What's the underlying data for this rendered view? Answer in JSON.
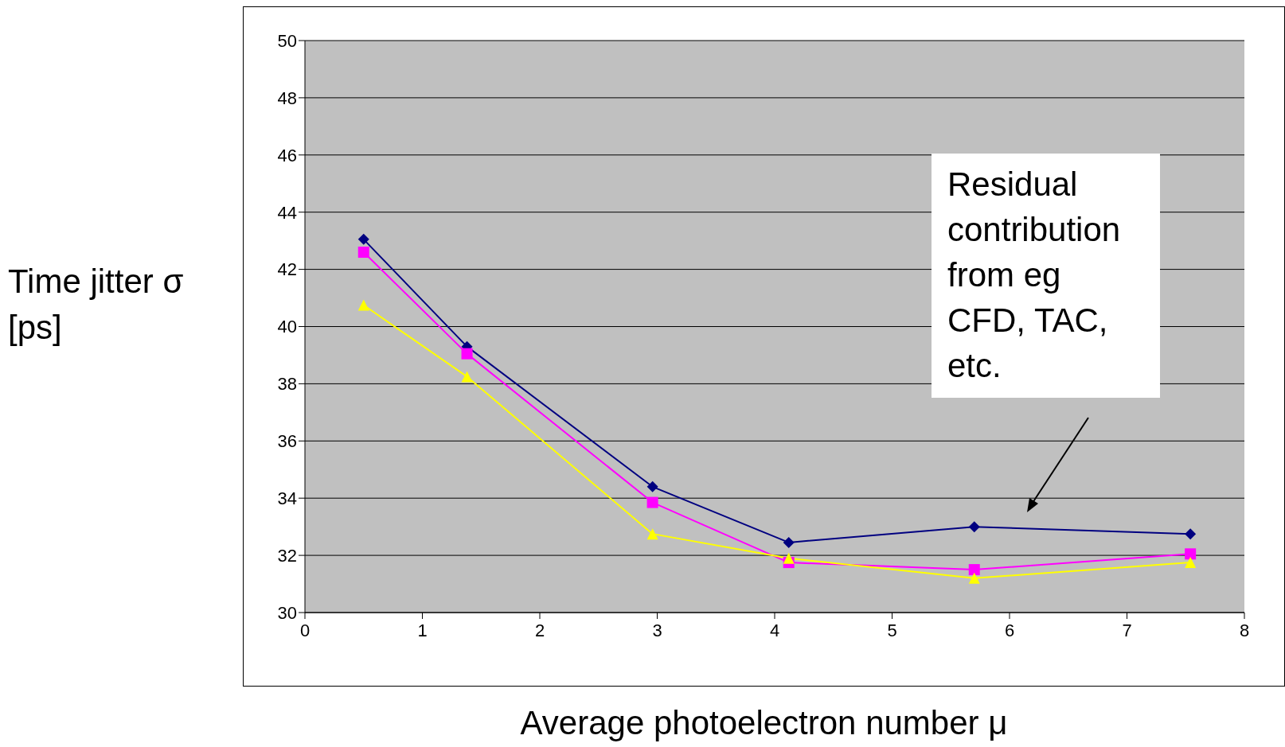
{
  "chart_data": {
    "type": "line",
    "xlabel": "Average photoelectron number μ",
    "ylabel": "Time jitter σ [ps]",
    "xlim": [
      0,
      8
    ],
    "xticks": [
      0,
      1,
      2,
      3,
      4,
      5,
      6,
      7,
      8
    ],
    "ylim": [
      30,
      50
    ],
    "yticks": [
      30,
      32,
      34,
      36,
      38,
      40,
      42,
      44,
      46,
      48,
      50
    ],
    "grid": "y",
    "x": [
      0.5,
      1.38,
      2.96,
      4.12,
      5.7,
      7.54
    ],
    "series": [
      {
        "color": "#000080",
        "marker": "diamond",
        "values": [
          43.05,
          39.3,
          34.4,
          32.45,
          33.0,
          32.75
        ]
      },
      {
        "color": "#ff00ff",
        "marker": "square",
        "values": [
          42.6,
          39.05,
          33.85,
          31.75,
          31.5,
          32.05
        ]
      },
      {
        "color": "#ffff00",
        "marker": "triangle",
        "values": [
          40.75,
          38.25,
          32.75,
          31.9,
          31.2,
          31.75
        ]
      }
    ],
    "annotations": [
      "Residual contribution from eg CFD, TAC, etc."
    ]
  }
}
